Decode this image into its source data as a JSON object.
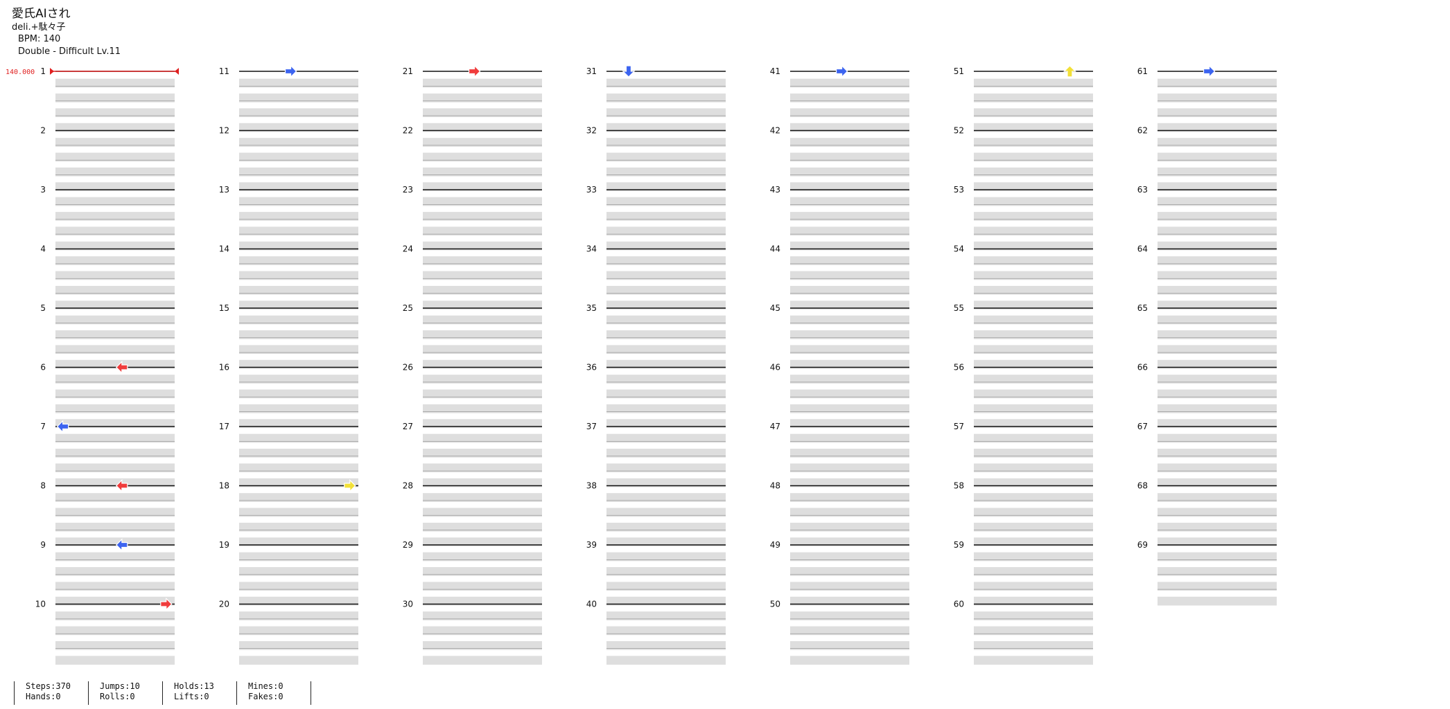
{
  "song": {
    "title": "愛氏AIされ",
    "artist": "deli.+駄々子",
    "bpm_text": "BPM: 140",
    "difficulty_text": "Double - Difficult  Lv.11"
  },
  "bpm_marker": "140.000",
  "colors": {
    "red": "#f03c3c",
    "blue": "#3c64f0",
    "yellow": "#f2e038",
    "hold": "#8ee08e",
    "beat_band": "#dedede"
  },
  "measure_count": 69,
  "measures_per_column": 10,
  "columns": 7,
  "sample_notes": [
    {
      "measure": 6,
      "beat": 0.0,
      "lane": 4,
      "dir": "left",
      "color": "red"
    },
    {
      "measure": 7,
      "beat": 0.0,
      "lane": 0,
      "dir": "left",
      "color": "blue"
    },
    {
      "measure": 8,
      "beat": 0.0,
      "lane": 4,
      "dir": "left",
      "color": "red"
    },
    {
      "measure": 9,
      "beat": 0.0,
      "lane": 4,
      "dir": "left",
      "color": "blue"
    },
    {
      "measure": 10,
      "beat": 0.0,
      "lane": 7,
      "dir": "right",
      "color": "red"
    },
    {
      "measure": 11,
      "beat": 0.0,
      "lane": 3,
      "dir": "right",
      "color": "blue"
    },
    {
      "measure": 18,
      "beat": 0.0,
      "lane": 7,
      "dir": "right",
      "color": "yellow"
    },
    {
      "measure": 21,
      "beat": 0.0,
      "lane": 3,
      "dir": "right",
      "color": "red"
    },
    {
      "measure": 31,
      "beat": 0.0,
      "lane": 1,
      "dir": "down",
      "color": "blue"
    },
    {
      "measure": 41,
      "beat": 0.0,
      "lane": 3,
      "dir": "right",
      "color": "blue"
    },
    {
      "measure": 51,
      "beat": 0.0,
      "lane": 6,
      "dir": "up",
      "color": "yellow"
    },
    {
      "measure": 61,
      "beat": 0.0,
      "lane": 3,
      "dir": "right",
      "color": "blue"
    }
  ],
  "stats": [
    {
      "a": "Steps:370",
      "b": "Hands:0"
    },
    {
      "a": "Jumps:10",
      "b": "Rolls:0"
    },
    {
      "a": "Holds:13",
      "b": "Lifts:0"
    },
    {
      "a": "Mines:0",
      "b": "Fakes:0"
    }
  ]
}
